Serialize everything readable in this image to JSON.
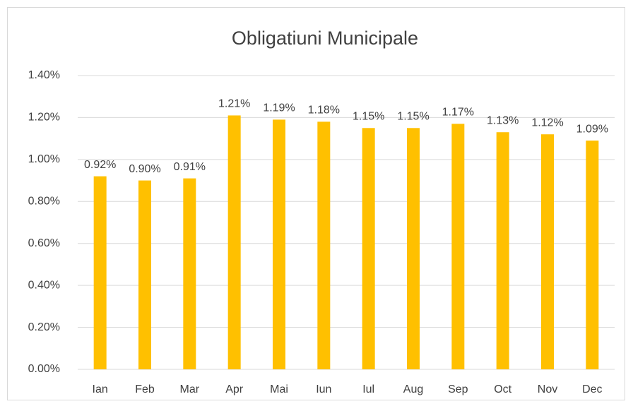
{
  "chart_data": {
    "type": "bar",
    "title": "Obligatiuni Municipale",
    "categories": [
      "Ian",
      "Feb",
      "Mar",
      "Apr",
      "Mai",
      "Iun",
      "Iul",
      "Aug",
      "Sep",
      "Oct",
      "Nov",
      "Dec"
    ],
    "values": [
      0.92,
      0.9,
      0.91,
      1.21,
      1.19,
      1.18,
      1.15,
      1.15,
      1.17,
      1.13,
      1.12,
      1.09
    ],
    "value_labels": [
      "0.92%",
      "0.90%",
      "0.91%",
      "1.21%",
      "1.19%",
      "1.18%",
      "1.15%",
      "1.15%",
      "1.17%",
      "1.13%",
      "1.12%",
      "1.09%"
    ],
    "color": "#ffc000",
    "ylim": [
      0,
      1.4
    ],
    "yticks": [
      {
        "value": 0,
        "label": "0.00%"
      },
      {
        "value": 0.2,
        "label": "0.20%"
      },
      {
        "value": 0.4,
        "label": "0.40%"
      },
      {
        "value": 0.6,
        "label": "0.60%"
      },
      {
        "value": 0.8,
        "label": "0.80%"
      },
      {
        "value": 1.0,
        "label": "1.00%"
      },
      {
        "value": 1.2,
        "label": "1.20%"
      },
      {
        "value": 1.4,
        "label": "1.40%"
      }
    ],
    "grid": true
  }
}
